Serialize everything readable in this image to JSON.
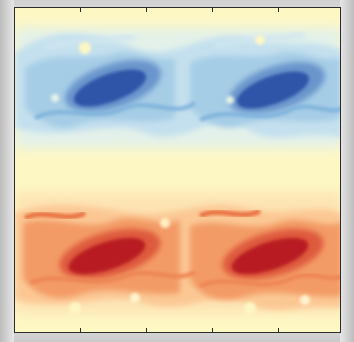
{
  "figure": {
    "description_icon": "vorticity-field-heatmap-icon",
    "colormap": {
      "negative": "#2f54a8",
      "negative_light": "#9fc6e4",
      "neutral": "#fdf7c4",
      "positive_light": "#f7b07a",
      "positive": "#b81f22"
    },
    "axes": {
      "x_ticks": [
        "",
        "",
        "",
        "",
        ""
      ],
      "tick_count": 5
    }
  }
}
